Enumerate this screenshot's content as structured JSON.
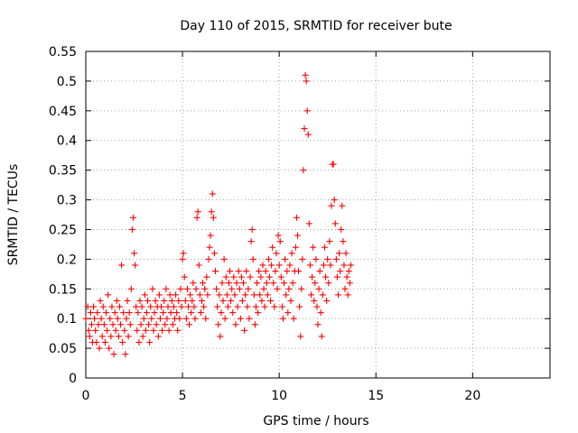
{
  "chart_data": {
    "type": "scatter",
    "title": "Day 110 of 2015, SRMTID for receiver bute",
    "xlabel": "GPS time / hours",
    "ylabel": "SRMTID / TECUs",
    "xlim": [
      0,
      24
    ],
    "ylim": [
      0,
      0.55
    ],
    "x_ticks": [
      0,
      5,
      10,
      15,
      20
    ],
    "y_ticks": [
      0,
      0.05,
      0.1,
      0.15,
      0.2,
      0.25,
      0.3,
      0.35,
      0.4,
      0.45,
      0.5,
      0.55
    ],
    "grid": true,
    "marker": "plus",
    "marker_color": "#ff0000",
    "series": [
      {
        "points": [
          [
            0.0,
            0.1
          ],
          [
            0.1,
            0.12
          ],
          [
            0.15,
            0.08
          ],
          [
            0.2,
            0.07
          ],
          [
            0.25,
            0.11
          ],
          [
            0.3,
            0.09
          ],
          [
            0.35,
            0.06
          ],
          [
            0.4,
            0.12
          ],
          [
            0.45,
            0.1
          ],
          [
            0.5,
            0.08
          ],
          [
            0.55,
            0.06
          ],
          [
            0.6,
            0.11
          ],
          [
            0.65,
            0.09
          ],
          [
            0.7,
            0.05
          ],
          [
            0.75,
            0.13
          ],
          [
            0.8,
            0.1
          ],
          [
            0.85,
            0.07
          ],
          [
            0.9,
            0.12
          ],
          [
            0.95,
            0.09
          ],
          [
            1.0,
            0.06
          ],
          [
            1.05,
            0.11
          ],
          [
            1.1,
            0.08
          ],
          [
            1.15,
            0.14
          ],
          [
            1.2,
            0.05
          ],
          [
            1.25,
            0.1
          ],
          [
            1.3,
            0.07
          ],
          [
            1.35,
            0.12
          ],
          [
            1.4,
            0.09
          ],
          [
            1.45,
            0.04
          ],
          [
            1.5,
            0.11
          ],
          [
            1.55,
            0.08
          ],
          [
            1.6,
            0.13
          ],
          [
            1.65,
            0.1
          ],
          [
            1.7,
            0.07
          ],
          [
            1.75,
            0.12
          ],
          [
            1.8,
            0.09
          ],
          [
            1.85,
            0.19
          ],
          [
            1.9,
            0.06
          ],
          [
            1.95,
            0.11
          ],
          [
            2.0,
            0.08
          ],
          [
            2.05,
            0.04
          ],
          [
            2.1,
            0.1
          ],
          [
            2.15,
            0.13
          ],
          [
            2.2,
            0.07
          ],
          [
            2.25,
            0.11
          ],
          [
            2.3,
            0.09
          ],
          [
            2.35,
            0.15
          ],
          [
            2.4,
            0.25
          ],
          [
            2.45,
            0.27
          ],
          [
            2.5,
            0.21
          ],
          [
            2.55,
            0.19
          ],
          [
            2.6,
            0.12
          ],
          [
            2.65,
            0.08
          ],
          [
            2.7,
            0.11
          ],
          [
            2.75,
            0.06
          ],
          [
            2.8,
            0.13
          ],
          [
            2.85,
            0.09
          ],
          [
            2.9,
            0.12
          ],
          [
            2.95,
            0.07
          ],
          [
            3.0,
            0.1
          ],
          [
            3.05,
            0.14
          ],
          [
            3.1,
            0.08
          ],
          [
            3.15,
            0.11
          ],
          [
            3.2,
            0.13
          ],
          [
            3.25,
            0.09
          ],
          [
            3.3,
            0.06
          ],
          [
            3.35,
            0.12
          ],
          [
            3.4,
            0.1
          ],
          [
            3.45,
            0.15
          ],
          [
            3.5,
            0.08
          ],
          [
            3.55,
            0.11
          ],
          [
            3.6,
            0.13
          ],
          [
            3.65,
            0.09
          ],
          [
            3.7,
            0.12
          ],
          [
            3.75,
            0.07
          ],
          [
            3.8,
            0.14
          ],
          [
            3.85,
            0.1
          ],
          [
            3.9,
            0.12
          ],
          [
            3.95,
            0.08
          ],
          [
            4.0,
            0.11
          ],
          [
            4.05,
            0.13
          ],
          [
            4.1,
            0.09
          ],
          [
            4.15,
            0.15
          ],
          [
            4.2,
            0.1
          ],
          [
            4.25,
            0.12
          ],
          [
            4.3,
            0.08
          ],
          [
            4.35,
            0.14
          ],
          [
            4.4,
            0.11
          ],
          [
            4.45,
            0.13
          ],
          [
            4.5,
            0.09
          ],
          [
            4.55,
            0.12
          ],
          [
            4.6,
            0.1
          ],
          [
            4.65,
            0.14
          ],
          [
            4.7,
            0.11
          ],
          [
            4.75,
            0.08
          ],
          [
            4.8,
            0.13
          ],
          [
            4.85,
            0.1
          ],
          [
            4.9,
            0.15
          ],
          [
            4.95,
            0.12
          ],
          [
            5.0,
            0.2
          ],
          [
            5.05,
            0.21
          ],
          [
            5.1,
            0.17
          ],
          [
            5.15,
            0.13
          ],
          [
            5.2,
            0.1
          ],
          [
            5.25,
            0.15
          ],
          [
            5.3,
            0.12
          ],
          [
            5.35,
            0.09
          ],
          [
            5.4,
            0.14
          ],
          [
            5.45,
            0.11
          ],
          [
            5.5,
            0.13
          ],
          [
            5.55,
            0.16
          ],
          [
            5.6,
            0.12
          ],
          [
            5.65,
            0.1
          ],
          [
            5.7,
            0.15
          ],
          [
            5.75,
            0.27
          ],
          [
            5.8,
            0.28
          ],
          [
            5.85,
            0.19
          ],
          [
            5.9,
            0.14
          ],
          [
            5.95,
            0.11
          ],
          [
            6.0,
            0.13
          ],
          [
            6.05,
            0.16
          ],
          [
            6.1,
            0.12
          ],
          [
            6.15,
            0.15
          ],
          [
            6.2,
            0.1
          ],
          [
            6.25,
            0.17
          ],
          [
            6.3,
            0.14
          ],
          [
            6.35,
            0.2
          ],
          [
            6.4,
            0.22
          ],
          [
            6.45,
            0.24
          ],
          [
            6.5,
            0.28
          ],
          [
            6.55,
            0.31
          ],
          [
            6.6,
            0.27
          ],
          [
            6.65,
            0.21
          ],
          [
            6.7,
            0.18
          ],
          [
            6.75,
            0.15
          ],
          [
            6.8,
            0.12
          ],
          [
            6.85,
            0.09
          ],
          [
            6.9,
            0.14
          ],
          [
            6.95,
            0.07
          ],
          [
            7.0,
            0.11
          ],
          [
            7.05,
            0.16
          ],
          [
            7.1,
            0.13
          ],
          [
            7.15,
            0.2
          ],
          [
            7.2,
            0.1
          ],
          [
            7.25,
            0.17
          ],
          [
            7.3,
            0.14
          ],
          [
            7.35,
            0.12
          ],
          [
            7.4,
            0.16
          ],
          [
            7.45,
            0.18
          ],
          [
            7.5,
            0.13
          ],
          [
            7.55,
            0.15
          ],
          [
            7.6,
            0.11
          ],
          [
            7.65,
            0.17
          ],
          [
            7.7,
            0.14
          ],
          [
            7.75,
            0.09
          ],
          [
            7.8,
            0.16
          ],
          [
            7.85,
            0.12
          ],
          [
            7.9,
            0.18
          ],
          [
            7.95,
            0.15
          ],
          [
            8.0,
            0.1
          ],
          [
            8.05,
            0.17
          ],
          [
            8.1,
            0.13
          ],
          [
            8.15,
            0.16
          ],
          [
            8.2,
            0.08
          ],
          [
            8.25,
            0.14
          ],
          [
            8.3,
            0.18
          ],
          [
            8.35,
            0.12
          ],
          [
            8.4,
            0.15
          ],
          [
            8.45,
            0.1
          ],
          [
            8.5,
            0.17
          ],
          [
            8.55,
            0.23
          ],
          [
            8.6,
            0.25
          ],
          [
            8.65,
            0.2
          ],
          [
            8.7,
            0.14
          ],
          [
            8.75,
            0.09
          ],
          [
            8.8,
            0.12
          ],
          [
            8.85,
            0.16
          ],
          [
            8.9,
            0.11
          ],
          [
            8.95,
            0.18
          ],
          [
            9.0,
            0.14
          ],
          [
            9.05,
            0.17
          ],
          [
            9.1,
            0.13
          ],
          [
            9.15,
            0.19
          ],
          [
            9.2,
            0.15
          ],
          [
            9.25,
            0.12
          ],
          [
            9.3,
            0.18
          ],
          [
            9.35,
            0.16
          ],
          [
            9.4,
            0.14
          ],
          [
            9.45,
            0.2
          ],
          [
            9.5,
            0.17
          ],
          [
            9.55,
            0.13
          ],
          [
            9.6,
            0.19
          ],
          [
            9.65,
            0.22
          ],
          [
            9.7,
            0.16
          ],
          [
            9.75,
            0.12
          ],
          [
            9.8,
            0.18
          ],
          [
            9.85,
            0.21
          ],
          [
            9.9,
            0.15
          ],
          [
            9.95,
            0.24
          ],
          [
            10.0,
            0.19
          ],
          [
            10.05,
            0.23
          ],
          [
            10.1,
            0.17
          ],
          [
            10.15,
            0.12
          ],
          [
            10.2,
            0.1
          ],
          [
            10.25,
            0.16
          ],
          [
            10.3,
            0.2
          ],
          [
            10.35,
            0.14
          ],
          [
            10.4,
            0.18
          ],
          [
            10.45,
            0.11
          ],
          [
            10.5,
            0.15
          ],
          [
            10.55,
            0.19
          ],
          [
            10.6,
            0.13
          ],
          [
            10.65,
            0.21
          ],
          [
            10.7,
            0.16
          ],
          [
            10.75,
            0.1
          ],
          [
            10.8,
            0.18
          ],
          [
            10.85,
            0.22
          ],
          [
            10.9,
            0.27
          ],
          [
            10.95,
            0.24
          ],
          [
            11.0,
            0.18
          ],
          [
            11.05,
            0.12
          ],
          [
            11.1,
            0.07
          ],
          [
            11.15,
            0.15
          ],
          [
            11.2,
            0.2
          ],
          [
            11.25,
            0.35
          ],
          [
            11.3,
            0.42
          ],
          [
            11.35,
            0.51
          ],
          [
            11.4,
            0.5
          ],
          [
            11.45,
            0.45
          ],
          [
            11.5,
            0.41
          ],
          [
            11.55,
            0.26
          ],
          [
            11.6,
            0.19
          ],
          [
            11.65,
            0.14
          ],
          [
            11.7,
            0.17
          ],
          [
            11.75,
            0.22
          ],
          [
            11.8,
            0.13
          ],
          [
            11.85,
            0.16
          ],
          [
            11.9,
            0.2
          ],
          [
            11.95,
            0.12
          ],
          [
            12.0,
            0.09
          ],
          [
            12.05,
            0.15
          ],
          [
            12.1,
            0.18
          ],
          [
            12.15,
            0.11
          ],
          [
            12.2,
            0.07
          ],
          [
            12.25,
            0.14
          ],
          [
            12.3,
            0.19
          ],
          [
            12.35,
            0.22
          ],
          [
            12.4,
            0.17
          ],
          [
            12.45,
            0.13
          ],
          [
            12.5,
            0.2
          ],
          [
            12.55,
            0.16
          ],
          [
            12.6,
            0.23
          ],
          [
            12.65,
            0.19
          ],
          [
            12.7,
            0.29
          ],
          [
            12.75,
            0.36
          ],
          [
            12.8,
            0.36
          ],
          [
            12.85,
            0.3
          ],
          [
            12.9,
            0.26
          ],
          [
            12.95,
            0.2
          ],
          [
            13.0,
            0.17
          ],
          [
            13.05,
            0.14
          ],
          [
            13.1,
            0.21
          ],
          [
            13.15,
            0.18
          ],
          [
            13.2,
            0.25
          ],
          [
            13.25,
            0.29
          ],
          [
            13.3,
            0.23
          ],
          [
            13.35,
            0.19
          ],
          [
            13.4,
            0.15
          ],
          [
            13.45,
            0.21
          ],
          [
            13.5,
            0.17
          ],
          [
            13.55,
            0.14
          ],
          [
            13.6,
            0.18
          ],
          [
            13.65,
            0.16
          ],
          [
            13.7,
            0.19
          ]
        ]
      }
    ]
  }
}
